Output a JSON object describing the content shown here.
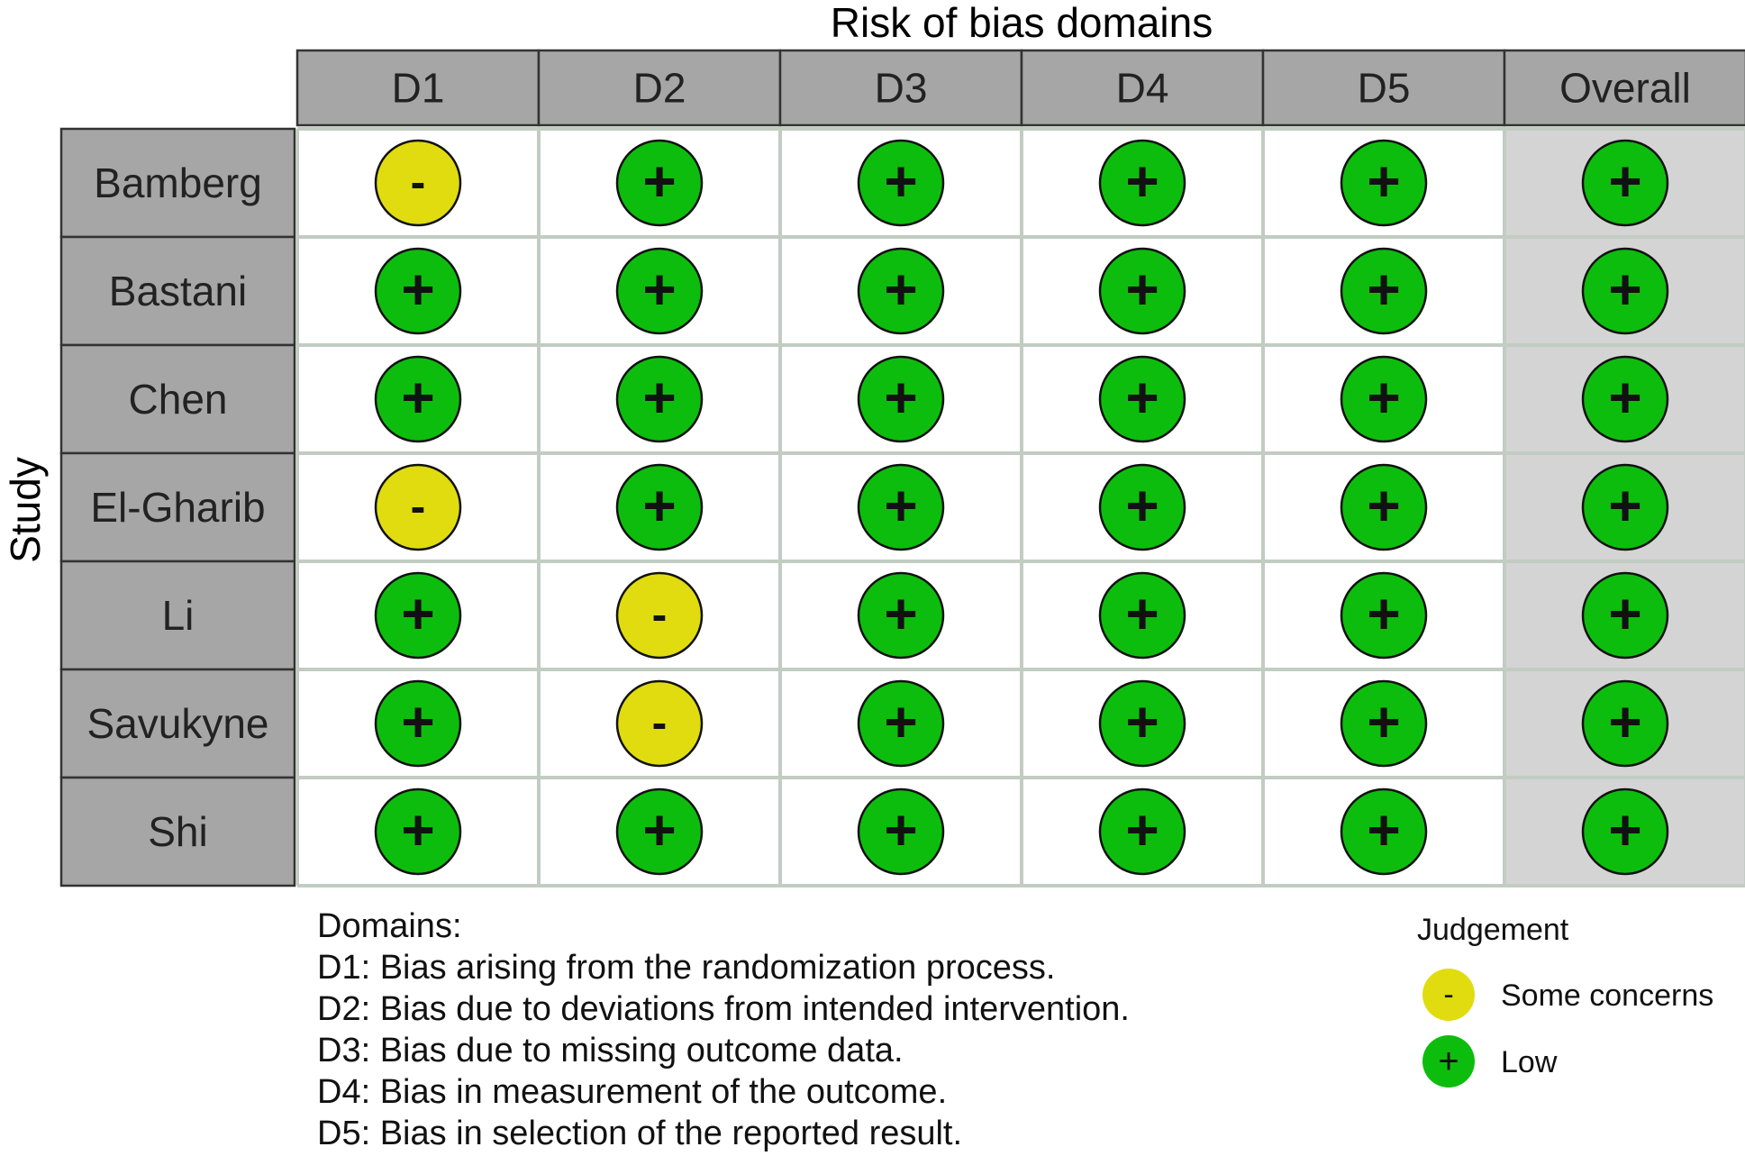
{
  "chart_data": {
    "type": "table",
    "title": "Risk of bias domains",
    "ylabel": "Study",
    "columns": [
      "D1",
      "D2",
      "D3",
      "D4",
      "D5",
      "Overall"
    ],
    "studies": [
      "Bamberg",
      "Bastani",
      "Chen",
      "El-Gharib",
      "Li",
      "Savukyne",
      "Shi"
    ],
    "judgements": [
      [
        "some",
        "low",
        "low",
        "low",
        "low",
        "low"
      ],
      [
        "low",
        "low",
        "low",
        "low",
        "low",
        "low"
      ],
      [
        "low",
        "low",
        "low",
        "low",
        "low",
        "low"
      ],
      [
        "some",
        "low",
        "low",
        "low",
        "low",
        "low"
      ],
      [
        "low",
        "some",
        "low",
        "low",
        "low",
        "low"
      ],
      [
        "low",
        "some",
        "low",
        "low",
        "low",
        "low"
      ],
      [
        "low",
        "low",
        "low",
        "low",
        "low",
        "low"
      ]
    ],
    "judgement_symbols": {
      "some": "-",
      "low": "+"
    },
    "colors": {
      "some": "#e0dc10",
      "low": "#0dbd0d",
      "header_bg": "#a6a6a6",
      "overall_bg": "#d4d4d4",
      "cell_border": "#c2ccc2"
    },
    "domains_heading": "Domains:",
    "domains": [
      "D1: Bias arising from the randomization process.",
      "D2: Bias due to deviations from intended intervention.",
      "D3: Bias due to missing outcome data.",
      "D4: Bias in measurement of the outcome.",
      "D5: Bias in selection of the reported result."
    ],
    "legend": {
      "title": "Judgement",
      "items": [
        {
          "key": "some",
          "label": "Some concerns"
        },
        {
          "key": "low",
          "label": "Low"
        }
      ]
    }
  }
}
